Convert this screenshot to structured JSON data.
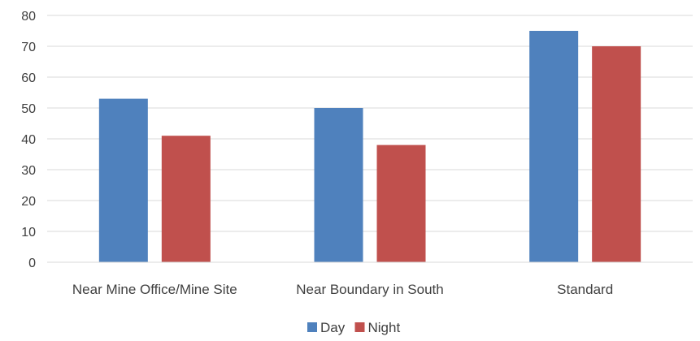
{
  "chart_data": {
    "type": "bar",
    "title": "",
    "xlabel": "",
    "ylabel": "",
    "categories": [
      "Near Mine Office/Mine Site",
      "Near Boundary in South",
      "Standard"
    ],
    "series": [
      {
        "name": "Day",
        "values": [
          53,
          50,
          75
        ],
        "color": "#4F81BD"
      },
      {
        "name": "Night",
        "values": [
          41,
          38,
          70
        ],
        "color": "#C0504D"
      }
    ],
    "ylim": [
      0,
      80
    ],
    "yticks": [
      0,
      10,
      20,
      30,
      40,
      50,
      60,
      70,
      80
    ],
    "grid": true,
    "legend_position": "bottom",
    "gridline_color": "#D9D9D9"
  }
}
